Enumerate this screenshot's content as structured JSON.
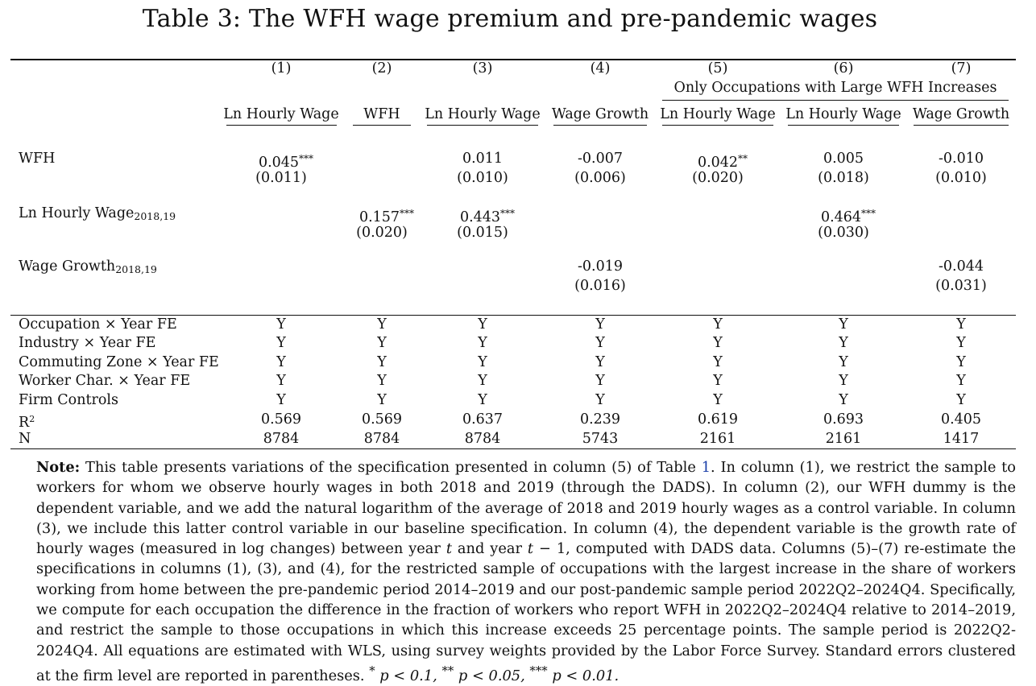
{
  "title": "Table 3: The WFH wage premium and pre-pandemic wages",
  "columns": [
    {
      "num": "(1)",
      "label": "Ln Hourly Wage"
    },
    {
      "num": "(2)",
      "label": "WFH"
    },
    {
      "num": "(3)",
      "label": "Ln Hourly Wage"
    },
    {
      "num": "(4)",
      "label": "Wage Growth"
    },
    {
      "num": "(5)",
      "label": "Ln Hourly Wage"
    },
    {
      "num": "(6)",
      "label": "Ln Hourly Wage"
    },
    {
      "num": "(7)",
      "label": "Wage Growth"
    }
  ],
  "group_header": "Only Occupations with Large WFH Increases",
  "coef_rows": [
    {
      "label": "WFH",
      "coefs": [
        "0.045",
        "",
        "0.011",
        "-0.007",
        "0.042",
        "0.005",
        "-0.010"
      ],
      "stars": [
        "***",
        "",
        "",
        "",
        "**",
        "",
        ""
      ],
      "ses": [
        "(0.011)",
        "",
        "(0.010)",
        "(0.006)",
        "(0.020)",
        "(0.018)",
        "(0.010)"
      ]
    },
    {
      "label": "Ln Hourly Wage",
      "label_sub": "2018,19",
      "coefs": [
        "",
        "0.157",
        "0.443",
        "",
        "",
        "0.464",
        ""
      ],
      "stars": [
        "",
        "***",
        "***",
        "",
        "",
        "***",
        ""
      ],
      "ses": [
        "",
        "(0.020)",
        "(0.015)",
        "",
        "",
        "(0.030)",
        ""
      ]
    },
    {
      "label": "Wage Growth",
      "label_sub": "2018,19",
      "coefs": [
        "",
        "",
        "",
        "-0.019",
        "",
        "",
        "-0.044"
      ],
      "stars": [
        "",
        "",
        "",
        "",
        "",
        "",
        ""
      ],
      "ses": [
        "",
        "",
        "",
        "(0.016)",
        "",
        "",
        "(0.031)"
      ]
    }
  ],
  "fe_rows": [
    {
      "label": "Occupation × Year FE",
      "values": [
        "Y",
        "Y",
        "Y",
        "Y",
        "Y",
        "Y",
        "Y"
      ]
    },
    {
      "label": "Industry × Year FE",
      "values": [
        "Y",
        "Y",
        "Y",
        "Y",
        "Y",
        "Y",
        "Y"
      ]
    },
    {
      "label": "Commuting Zone × Year FE",
      "values": [
        "Y",
        "Y",
        "Y",
        "Y",
        "Y",
        "Y",
        "Y"
      ]
    },
    {
      "label": "Worker Char. × Year FE",
      "values": [
        "Y",
        "Y",
        "Y",
        "Y",
        "Y",
        "Y",
        "Y"
      ]
    },
    {
      "label": "Firm Controls",
      "values": [
        "Y",
        "Y",
        "Y",
        "Y",
        "Y",
        "Y",
        "Y"
      ]
    }
  ],
  "stat_rows": [
    {
      "label": "R",
      "label_sup": "2",
      "values": [
        "0.569",
        "0.569",
        "0.637",
        "0.239",
        "0.619",
        "0.693",
        "0.405"
      ]
    },
    {
      "label": "N",
      "values": [
        "8784",
        "8784",
        "8784",
        "5743",
        "2161",
        "2161",
        "1417"
      ]
    }
  ],
  "note": {
    "lead": "Note:",
    "p1": "This table presents variations of the specification presented in column (5) of Table ",
    "table_ref": "1",
    "p2": ". In column (1), we restrict the sample to workers for whom we observe hourly wages in both 2018 and 2019 (through the DADS). In column (2), our WFH dummy is the dependent variable, and we add the natural logarithm of the average of 2018 and 2019 hourly wages as a control variable. In column (3), we include this latter control variable in our baseline specification. In column (4), the dependent variable is the growth rate of hourly wages (measured in log changes) between year ",
    "t1": "t",
    "p3": " and year ",
    "t2": "t",
    "p4": " − 1, computed with DADS data. Columns (5)–(7) re-estimate the specifications in columns (1), (3), and (4), for the restricted sample of occupations with the largest increase in the share of workers working from home between the pre-pandemic period 2014–2019 and our post-pandemic sample period 2022Q2–2024Q4. Specifically, we compute for each occupation the difference in the fraction of workers who report WFH in 2022Q2–2024Q4 relative to 2014–2019, and restrict the sample to those occupations in which this increase exceeds 25 percentage points. The sample period is 2022Q2-2024Q4. All equations are estimated with WLS, using survey weights provided by the Labor Force Survey. Standard errors clustered at the firm level are reported in parentheses. ",
    "sig1_star": "*",
    "sig1": " p < 0.1, ",
    "sig2_star": "**",
    "sig2": " p < 0.05, ",
    "sig3_star": "***",
    "sig3": " p < 0.01."
  }
}
